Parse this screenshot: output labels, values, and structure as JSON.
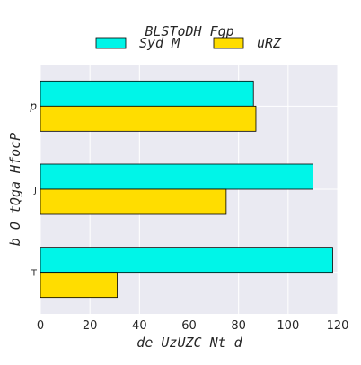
{
  "chart_data": {
    "type": "bar",
    "orientation": "horizontal",
    "legend_title": "BLSToDH Fgp",
    "xlabel": "de UzUZC Nt d",
    "ylabel": "b O tQga HfocP",
    "categories": [
      "p",
      "J",
      "T"
    ],
    "xlim": [
      0,
      120
    ],
    "xticks": [
      0,
      20,
      40,
      60,
      80,
      100,
      120
    ],
    "series": [
      {
        "name": "Syd M",
        "color": "#00f5e8",
        "values": [
          86,
          110,
          118
        ]
      },
      {
        "name": "uRZ",
        "color": "#ffdd00",
        "values": [
          87,
          75,
          31
        ]
      }
    ],
    "grid": true,
    "legend_position": "top"
  }
}
